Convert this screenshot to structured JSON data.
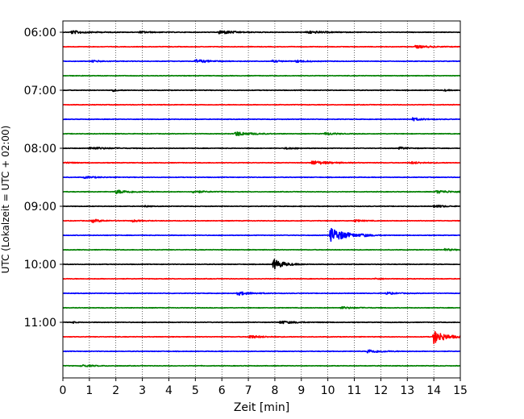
{
  "chart_data": {
    "type": "line",
    "title": "",
    "xlabel": "Zeit  [min]",
    "ylabel": "UTC (Lokalzeit = UTC + 02:00)",
    "xlim": [
      0,
      15
    ],
    "x_ticks": [
      "0",
      "1",
      "2",
      "3",
      "4",
      "5",
      "6",
      "7",
      "8",
      "9",
      "10",
      "11",
      "12",
      "13",
      "14",
      "15"
    ],
    "y_tick_labels": [
      "06:00",
      "07:00",
      "08:00",
      "09:00",
      "10:00",
      "11:00"
    ],
    "x_grid": true,
    "y_grid": false,
    "colors": [
      "#000000",
      "#ff0000",
      "#0000ff",
      "#008000"
    ],
    "traces": [
      {
        "start": "06:00",
        "color": "#000000",
        "events": [
          [
            0.3,
            1.0,
            0.18
          ],
          [
            2.9,
            0.8,
            0.1
          ],
          [
            5.9,
            0.9,
            0.22
          ],
          [
            9.2,
            1.1,
            0.15
          ]
        ]
      },
      {
        "start": "06:15",
        "color": "#ff0000",
        "events": [
          [
            13.3,
            0.9,
            0.15
          ]
        ]
      },
      {
        "start": "06:30",
        "color": "#0000ff",
        "events": [
          [
            1.1,
            0.7,
            0.1
          ],
          [
            5.0,
            0.9,
            0.18
          ],
          [
            7.9,
            0.6,
            0.1
          ],
          [
            8.8,
            0.7,
            0.12
          ]
        ]
      },
      {
        "start": "06:45",
        "color": "#008000",
        "events": []
      },
      {
        "start": "07:00",
        "color": "#000000",
        "events": [
          [
            1.85,
            0.35,
            0.12
          ],
          [
            14.4,
            0.3,
            0.08
          ]
        ]
      },
      {
        "start": "07:15",
        "color": "#ff0000",
        "events": []
      },
      {
        "start": "07:30",
        "color": "#0000ff",
        "events": [
          [
            13.2,
            0.7,
            0.15
          ]
        ]
      },
      {
        "start": "07:45",
        "color": "#008000",
        "events": [
          [
            6.5,
            0.9,
            0.25
          ],
          [
            9.9,
            0.6,
            0.15
          ]
        ]
      },
      {
        "start": "08:00",
        "color": "#000000",
        "events": [
          [
            1.0,
            1.0,
            0.15
          ],
          [
            8.4,
            0.6,
            0.1
          ],
          [
            12.7,
            0.5,
            0.12
          ]
        ]
      },
      {
        "start": "08:15",
        "color": "#ff0000",
        "events": [
          [
            0.1,
            0.5,
            0.08
          ],
          [
            9.4,
            1.0,
            0.22
          ],
          [
            13.1,
            0.8,
            0.12
          ]
        ]
      },
      {
        "start": "08:30",
        "color": "#0000ff",
        "events": [
          [
            0.8,
            0.9,
            0.1
          ]
        ]
      },
      {
        "start": "08:45",
        "color": "#008000",
        "events": [
          [
            2.0,
            0.9,
            0.2
          ],
          [
            4.9,
            0.7,
            0.14
          ],
          [
            14.1,
            0.9,
            0.16
          ]
        ]
      },
      {
        "start": "09:00",
        "color": "#000000",
        "events": [
          [
            3.1,
            0.3,
            0.08
          ],
          [
            14.0,
            0.6,
            0.16
          ]
        ]
      },
      {
        "start": "09:15",
        "color": "#ff0000",
        "events": [
          [
            1.1,
            0.6,
            0.18
          ],
          [
            2.6,
            0.5,
            0.12
          ],
          [
            11.0,
            0.5,
            0.12
          ]
        ]
      },
      {
        "start": "09:30",
        "color": "#0000ff",
        "events": [
          [
            10.1,
            0.9,
            0.85
          ],
          [
            11.3,
            0.3,
            0.1
          ]
        ]
      },
      {
        "start": "09:45",
        "color": "#008000",
        "events": [
          [
            14.4,
            0.5,
            0.12
          ]
        ]
      },
      {
        "start": "10:00",
        "color": "#000000",
        "events": [
          [
            7.95,
            0.6,
            0.6
          ]
        ]
      },
      {
        "start": "10:15",
        "color": "#ff0000",
        "events": [
          [
            11.8,
            0.4,
            0.08
          ]
        ]
      },
      {
        "start": "10:30",
        "color": "#0000ff",
        "events": [
          [
            6.6,
            0.8,
            0.2
          ],
          [
            12.2,
            0.6,
            0.12
          ]
        ]
      },
      {
        "start": "10:45",
        "color": "#008000",
        "events": [
          [
            10.5,
            0.8,
            0.12
          ]
        ]
      },
      {
        "start": "11:00",
        "color": "#000000",
        "events": [
          [
            0.35,
            0.2,
            0.12
          ],
          [
            8.2,
            1.0,
            0.15
          ]
        ]
      },
      {
        "start": "11:15",
        "color": "#ff0000",
        "events": [
          [
            7.0,
            0.8,
            0.18
          ],
          [
            14.0,
            0.7,
            0.75
          ]
        ]
      },
      {
        "start": "11:30",
        "color": "#0000ff",
        "events": [
          [
            11.5,
            0.8,
            0.2
          ]
        ]
      },
      {
        "start": "11:45",
        "color": "#008000",
        "events": [
          [
            0.7,
            0.7,
            0.12
          ]
        ]
      }
    ]
  }
}
